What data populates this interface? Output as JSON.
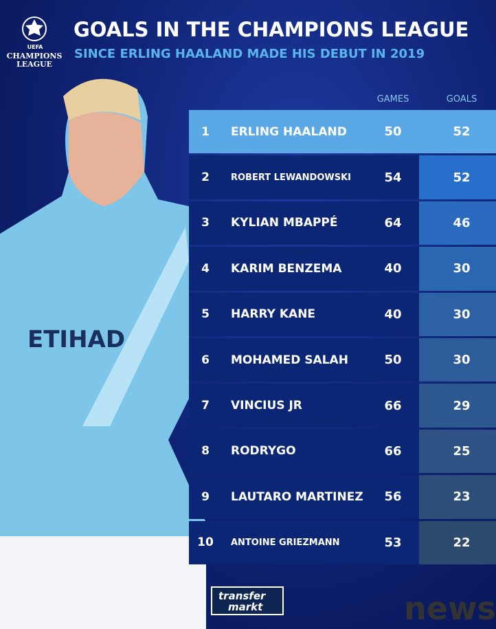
{
  "logo": {
    "uefa": "UEFA",
    "line1": "CHAMPIONS",
    "line2": "LEAGUE"
  },
  "header": {
    "title": "GOALS IN THE CHAMPIONS LEAGUE",
    "subtitle": "SINCE ERLING HAALAND MADE HIS DEBUT IN 2019"
  },
  "table": {
    "columns": [
      "GAMES",
      "GOALS"
    ],
    "rows": [
      [
        1,
        "ERLING HAALAND",
        50,
        52
      ],
      [
        2,
        "ROBERT LEWANDOWSKI",
        54,
        52
      ],
      [
        3,
        "KYLIAN MBAPPÉ",
        64,
        46
      ],
      [
        4,
        "KARIM BENZEMA",
        40,
        30
      ],
      [
        5,
        "HARRY KANE",
        40,
        30
      ],
      [
        6,
        "MOHAMED SALAH",
        50,
        30
      ],
      [
        7,
        "VINCIUS JR",
        66,
        29
      ],
      [
        8,
        "RODRYGO",
        66,
        25
      ],
      [
        9,
        "LAUTARO MARTINEZ",
        56,
        23
      ],
      [
        10,
        "ANTOINE GRIEZMANN",
        53,
        22
      ]
    ]
  },
  "footer": {
    "brand1": "transfer",
    "brand2": "markt",
    "watermark": "news"
  }
}
